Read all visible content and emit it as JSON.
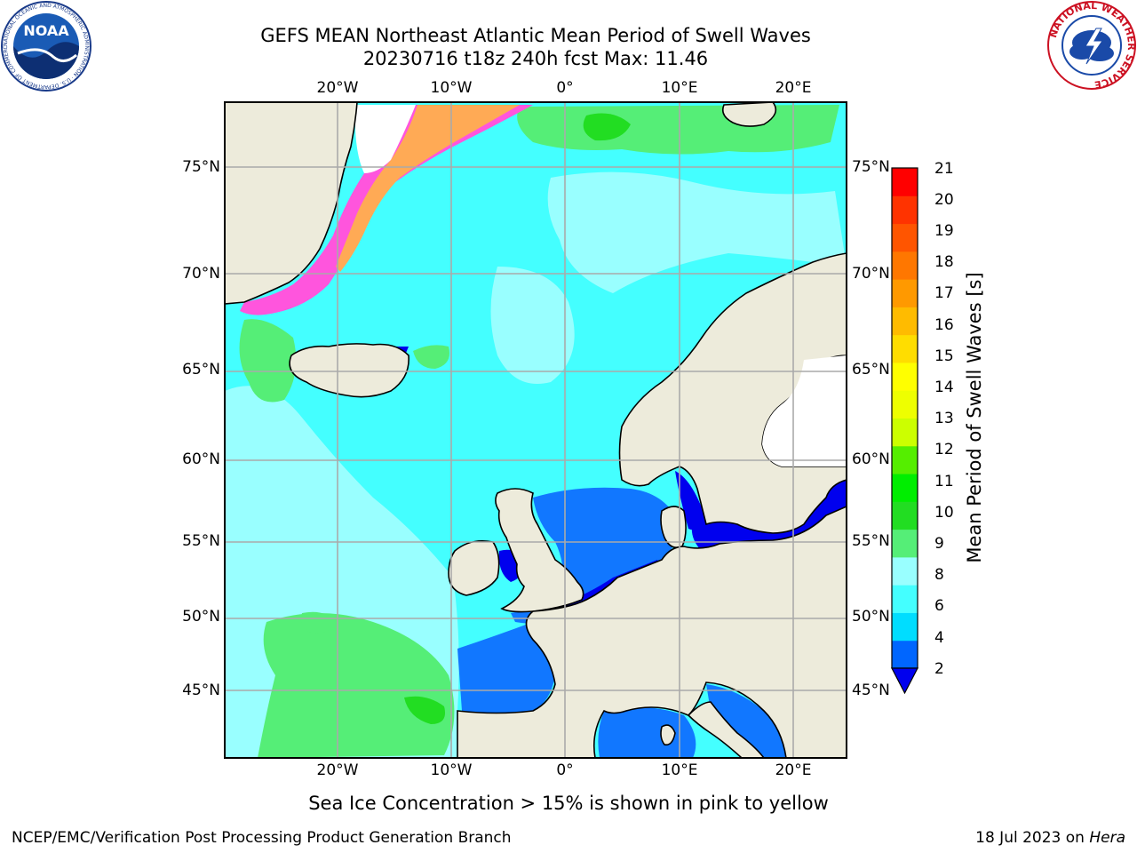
{
  "header": {
    "title_line1": "GEFS MEAN Northeast Atlantic Mean Period of Swell Waves",
    "title_line2": "20230716 t18z 240h fcst   Max: 11.46"
  },
  "logos": {
    "left": "NOAA",
    "left_ring_text": "NATIONAL OCEANIC AND ATMOSPHERIC ADMINISTRATION · U.S. DEPARTMENT OF COMMERCE",
    "right_ring_text": "NATIONAL WEATHER SERVICE"
  },
  "map": {
    "lon_labels": [
      "20°W",
      "10°W",
      "0°",
      "10°E",
      "20°E"
    ],
    "lat_labels": [
      "75°N",
      "70°N",
      "65°N",
      "60°N",
      "55°N",
      "50°N",
      "45°N"
    ],
    "colors": {
      "land": "#edebdb",
      "ocean_base": "#44ffff",
      "ocean_light": "#99ffff",
      "swell_9_10": "#55ee77",
      "swell_2_4": "#1177ff",
      "swell_under_2": "#0000ee",
      "sea_ice_pink": "#ff55dd",
      "sea_ice_orange": "#ffaa55",
      "grid": "#aaaaaa"
    }
  },
  "colorbar": {
    "label": "Mean Period of Swell Waves [s]",
    "ticks": [
      "21",
      "20",
      "19",
      "18",
      "17",
      "16",
      "15",
      "14",
      "13",
      "12",
      "11",
      "10",
      "9",
      "8",
      "6",
      "4",
      "2"
    ],
    "colors_bottom_to_top": [
      "#0066ff",
      "#00ddff",
      "#44ffff",
      "#99ffff",
      "#55ee77",
      "#22dd22",
      "#00ee00",
      "#55ee00",
      "#ccff00",
      "#eeff00",
      "#ffff00",
      "#ffdd00",
      "#ffbb00",
      "#ff9900",
      "#ff7700",
      "#ff5500",
      "#ff3300",
      "#ff0000"
    ],
    "under_color": "#0000ee"
  },
  "footer": {
    "note": "Sea Ice Concentration > 15% is shown in pink to yellow",
    "left": "NCEP/EMC/Verification Post Processing Product Generation Branch",
    "date": "18 Jul 2023 on",
    "host": "Hera"
  }
}
